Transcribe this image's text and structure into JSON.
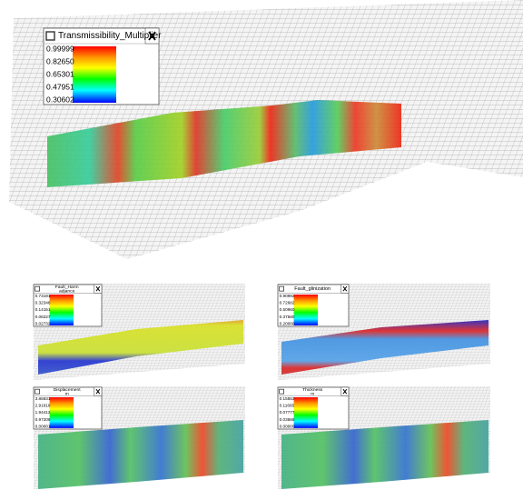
{
  "legends": [
    {
      "title": "Transmissibility_Multiplier",
      "labels": [
        "0.99999",
        "0.82650",
        "0.65301",
        "0.47951",
        "0.30602"
      ]
    },
    {
      "title": "Fault_Harm",
      "subtitle": "adjance",
      "labels": [
        "0.73191",
        "0.32346",
        "0.14151",
        "0.06227",
        "0.02732"
      ]
    },
    {
      "title": "Fault_glinization",
      "labels": [
        "0.90992",
        "0.72682",
        "0.50960",
        "0.37580",
        "0.20000"
      ]
    },
    {
      "title": "Displacement",
      "subtitle": "m",
      "labels": [
        "3.88831",
        "2.91618",
        "1.94412",
        "0.97206",
        "0.00001"
      ]
    },
    {
      "title": "Thickness",
      "subtitle": "m",
      "labels": [
        "0.15553",
        "0.11665",
        "0.07777",
        "0.03888",
        "0.00000"
      ]
    }
  ]
}
